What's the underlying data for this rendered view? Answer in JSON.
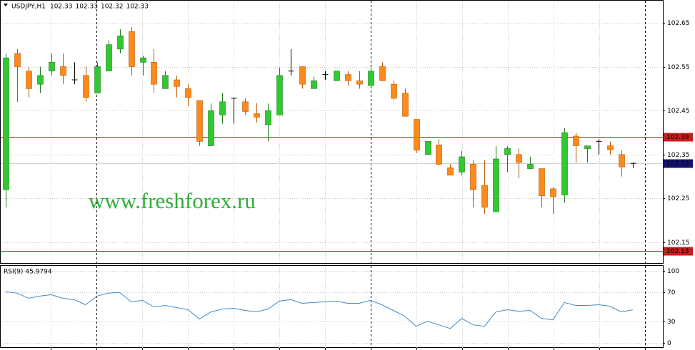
{
  "chart_data": [
    {
      "type": "candlestick",
      "title": "USDJPY,H1",
      "quote": [
        102.33,
        102.33,
        102.32,
        102.33
      ],
      "annotation": "www.freshforex.ru",
      "up_color": "#32c832",
      "down_color": "#ff8a1c",
      "doji_color": "#000000",
      "open": [
        102.27,
        102.58,
        102.54,
        102.51,
        102.54,
        102.55,
        102.52,
        102.53,
        102.49,
        102.54,
        102.59,
        102.63,
        102.56,
        102.56,
        102.5,
        102.52,
        102.5,
        102.473,
        102.37,
        102.44,
        102.478,
        102.47,
        102.443,
        102.418,
        102.44,
        102.54,
        102.55,
        102.5,
        102.532,
        102.518,
        102.532,
        102.518,
        102.507,
        102.55,
        102.51,
        102.49,
        102.43,
        102.35,
        102.372,
        102.32,
        102.31,
        102.328,
        102.28,
        102.22,
        102.35,
        102.35,
        102.318,
        102.318,
        102.272,
        102.258,
        102.392,
        102.363,
        102.38,
        102.37,
        102.35,
        102.33
      ],
      "high": [
        102.58,
        102.59,
        102.55,
        102.55,
        102.58,
        102.58,
        102.56,
        102.55,
        102.56,
        102.61,
        102.635,
        102.64,
        102.575,
        102.59,
        102.54,
        102.53,
        102.51,
        102.473,
        102.466,
        102.49,
        102.48,
        102.478,
        102.467,
        102.466,
        102.548,
        102.59,
        102.55,
        102.527,
        102.54,
        102.54,
        102.54,
        102.54,
        102.548,
        102.56,
        102.518,
        102.5,
        102.43,
        102.38,
        102.385,
        102.328,
        102.358,
        102.337,
        102.337,
        102.369,
        102.369,
        102.364,
        102.345,
        102.318,
        102.276,
        102.41,
        102.4,
        102.37,
        102.385,
        102.38,
        102.36,
        102.332
      ],
      "low": [
        102.23,
        102.47,
        102.48,
        102.49,
        102.53,
        102.51,
        102.51,
        102.47,
        102.49,
        102.54,
        102.58,
        102.53,
        102.53,
        102.49,
        102.5,
        102.48,
        102.46,
        102.37,
        102.37,
        102.42,
        102.42,
        102.44,
        102.423,
        102.38,
        102.44,
        102.53,
        102.5,
        102.5,
        102.52,
        102.518,
        102.507,
        102.5,
        102.507,
        102.518,
        102.475,
        102.437,
        102.353,
        102.35,
        102.325,
        102.303,
        102.303,
        102.23,
        102.215,
        102.22,
        102.31,
        102.296,
        102.318,
        102.23,
        102.215,
        102.24,
        102.332,
        102.332,
        102.35,
        102.35,
        102.3,
        102.32
      ],
      "close": [
        102.57,
        102.55,
        102.5,
        102.53,
        102.56,
        102.53,
        102.52,
        102.48,
        102.55,
        102.6,
        102.62,
        102.55,
        102.57,
        102.51,
        102.53,
        102.505,
        102.48,
        102.38,
        102.45,
        102.47,
        102.478,
        102.448,
        102.435,
        102.45,
        102.53,
        102.54,
        102.51,
        102.518,
        102.532,
        102.54,
        102.518,
        102.51,
        102.54,
        102.518,
        102.478,
        102.437,
        102.36,
        102.38,
        102.328,
        102.303,
        102.345,
        102.27,
        102.23,
        102.34,
        102.364,
        102.332,
        102.328,
        102.256,
        102.254,
        102.4,
        102.37,
        102.37,
        102.38,
        102.361,
        102.322,
        102.33
      ],
      "ylim": [
        102.1,
        102.7
      ],
      "yticks": [
        102.15,
        102.25,
        102.35,
        102.45,
        102.55,
        102.65
      ],
      "grid": true,
      "levels": [
        {
          "value": 102.39,
          "color": "#c81e1e"
        },
        {
          "value": 102.13,
          "color": "#c81e1e"
        }
      ],
      "last_price": 102.33,
      "last_price_color": "#14146e"
    },
    {
      "type": "line",
      "title": "RSI(9)",
      "last_value": 45.9794,
      "color": "#3c8ccd",
      "values": [
        71,
        69,
        62,
        65,
        67,
        62,
        60,
        53,
        65,
        69,
        70,
        57,
        59,
        50,
        52,
        49,
        46,
        33,
        43,
        47,
        48,
        45,
        43,
        47,
        58,
        60,
        55,
        56,
        57,
        58,
        55,
        55,
        59,
        53,
        45,
        37,
        23,
        30,
        25,
        20,
        34,
        25,
        23,
        43,
        46,
        44,
        45,
        34,
        32,
        56,
        52,
        52,
        53,
        51,
        43,
        45.9794
      ],
      "ylim": [
        -7,
        107
      ],
      "yticks": [
        0,
        30,
        70,
        100
      ],
      "grid": true
    }
  ]
}
